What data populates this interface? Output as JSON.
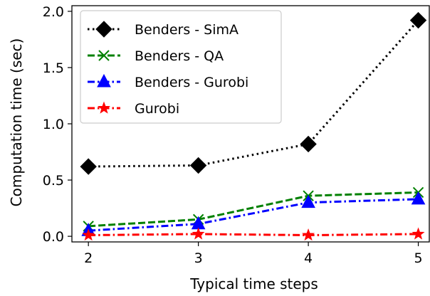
{
  "chart_data": {
    "type": "line",
    "xlabel": "Typical time steps",
    "ylabel": "Computation time (sec)",
    "x": [
      2,
      3,
      4,
      5
    ],
    "xticks": [
      "2",
      "3",
      "4",
      "5"
    ],
    "yticks": [
      "0.0",
      "0.5",
      "1.0",
      "1.5",
      "2.0"
    ],
    "ylim": [
      -0.05,
      2.05
    ],
    "xlim": [
      1.85,
      5.1
    ],
    "grid": false,
    "legend_position": "top-left",
    "series": [
      {
        "name": "Benders - SimA",
        "values": [
          0.62,
          0.63,
          0.82,
          1.92
        ],
        "color": "#000000",
        "dash": "dotted",
        "marker": "diamond"
      },
      {
        "name": "Benders - QA",
        "values": [
          0.09,
          0.15,
          0.36,
          0.39
        ],
        "color": "#008000",
        "dash": "dashed",
        "marker": "x"
      },
      {
        "name": "Benders - Gurobi",
        "values": [
          0.05,
          0.11,
          0.3,
          0.33
        ],
        "color": "#0000ff",
        "dash": "dashdot",
        "marker": "triangle"
      },
      {
        "name": "Gurobi",
        "values": [
          0.01,
          0.02,
          0.01,
          0.02
        ],
        "color": "#ff0000",
        "dash": "dashdot",
        "marker": "star"
      }
    ]
  }
}
